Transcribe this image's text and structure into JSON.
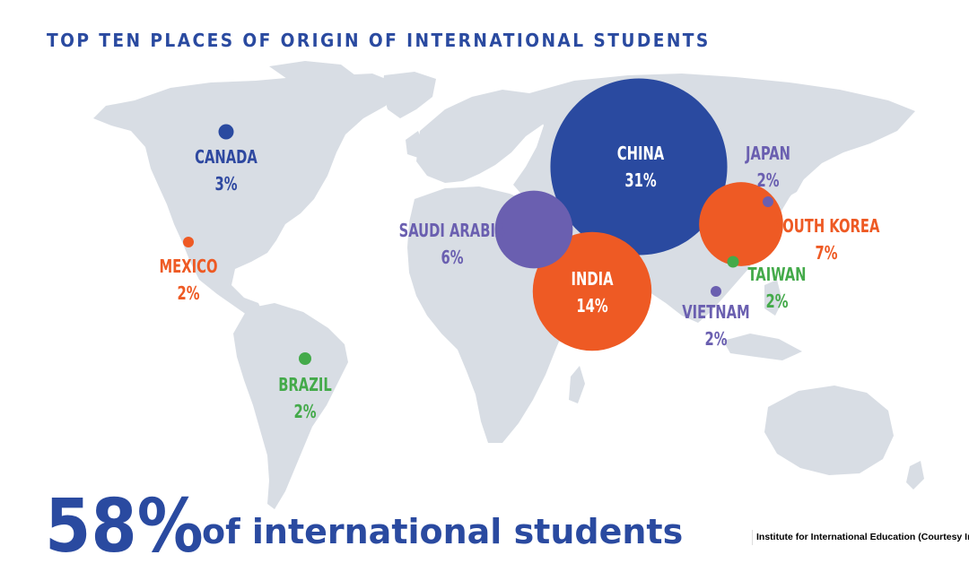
{
  "title": "TOP TEN PLACES OF ORIGIN OF INTERNATIONAL STUDENTS",
  "colors": {
    "land": "#d8dde4",
    "blue": "#2a4aa0",
    "orange": "#ee5a24",
    "green": "#44aa4a",
    "purple": "#6a5fb0"
  },
  "places": [
    {
      "name": "CHINA",
      "percent": "31%",
      "value": 31,
      "color": "blue"
    },
    {
      "name": "INDIA",
      "percent": "14%",
      "value": 14,
      "color": "orange"
    },
    {
      "name": "SOUTH KOREA",
      "percent": "7%",
      "value": 7,
      "color": "orange"
    },
    {
      "name": "SAUDI ARABIA",
      "percent": "6%",
      "value": 6,
      "color": "purple"
    },
    {
      "name": "CANADA",
      "percent": "3%",
      "value": 3,
      "color": "blue"
    },
    {
      "name": "JAPAN",
      "percent": "2%",
      "value": 2,
      "color": "purple"
    },
    {
      "name": "MEXICO",
      "percent": "2%",
      "value": 2,
      "color": "orange"
    },
    {
      "name": "TAIWAN",
      "percent": "2%",
      "value": 2,
      "color": "green"
    },
    {
      "name": "VIETNAM",
      "percent": "2%",
      "value": 2,
      "color": "purple"
    },
    {
      "name": "BRAZIL",
      "percent": "2%",
      "value": 2,
      "color": "green"
    }
  ],
  "summary": {
    "big_percent": "58%",
    "text": "of international students"
  },
  "credit": "Institute for International Education (Courtesy Image)"
}
